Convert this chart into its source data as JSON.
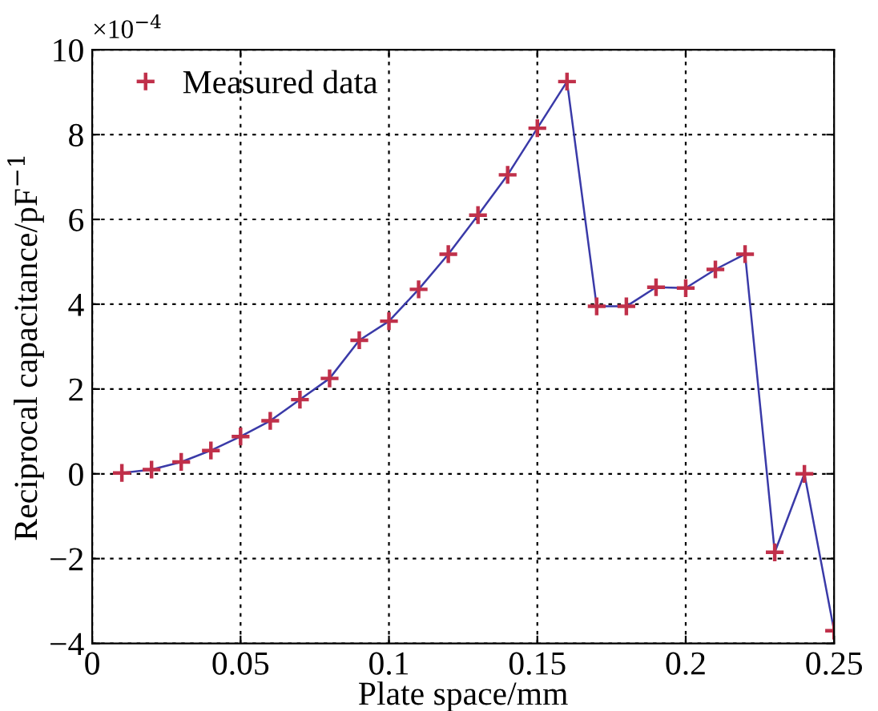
{
  "chart_data": {
    "type": "line",
    "xlabel": "Plate space/mm",
    "ylabel": "Reciprocal capacitance/pF$^{−1}$",
    "annotations": [
      "×10$^{−4}$"
    ],
    "x": [
      0.01,
      0.02,
      0.03,
      0.04,
      0.05,
      0.06,
      0.07,
      0.08,
      0.09,
      0.1,
      0.11,
      0.12,
      0.13,
      0.14,
      0.15,
      0.16,
      0.17,
      0.18,
      0.19,
      0.2,
      0.21,
      0.22,
      0.23,
      0.24,
      0.25
    ],
    "series": [
      {
        "color": "#3a3aa8",
        "values": [
          0.02,
          0.1,
          0.28,
          0.55,
          0.88,
          1.25,
          1.75,
          2.25,
          3.15,
          3.6,
          4.35,
          5.18,
          6.1,
          7.05,
          8.15,
          9.25,
          3.95,
          3.95,
          4.4,
          4.38,
          4.82,
          5.18,
          -1.85,
          0.0,
          -3.7
        ]
      },
      {
        "type": "scatter",
        "name": "Measured data",
        "color": "#c0304a",
        "marker": "cross",
        "values": [
          0.02,
          0.1,
          0.28,
          0.55,
          0.88,
          1.25,
          1.75,
          2.25,
          3.15,
          3.6,
          4.35,
          5.18,
          6.1,
          7.05,
          8.15,
          9.25,
          3.95,
          3.95,
          4.4,
          4.38,
          4.82,
          5.18,
          -1.85,
          0.0,
          -3.7
        ]
      }
    ],
    "xlim": [
      0,
      0.25
    ],
    "xticks": [
      0,
      0.05,
      0.1,
      0.15,
      0.2,
      0.25
    ],
    "ylim": [
      -4,
      10
    ],
    "yticks": [
      {
        "value": -4,
        "label": "−4"
      },
      {
        "value": -2,
        "label": "−2"
      },
      0,
      2,
      4,
      6,
      8,
      10
    ],
    "grid": true,
    "legend": "top left",
    "line_style": "solid"
  }
}
